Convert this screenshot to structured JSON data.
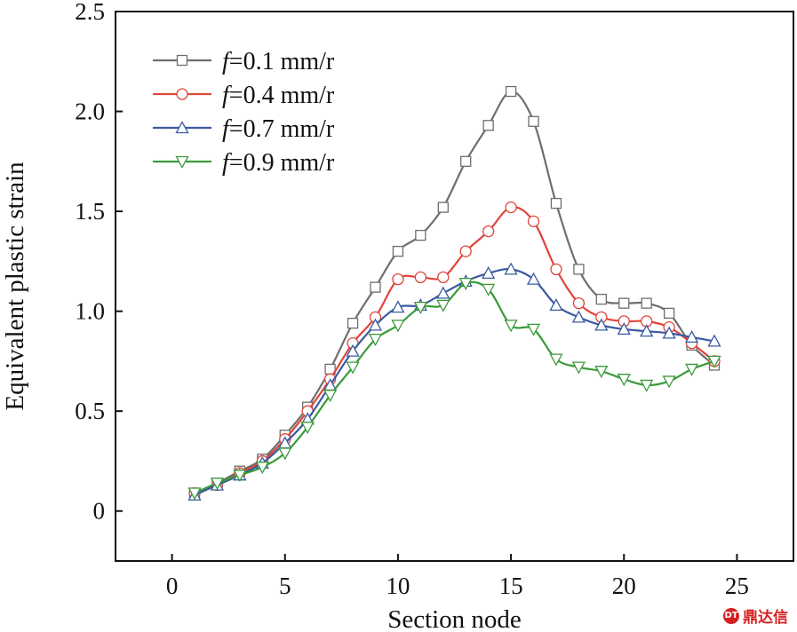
{
  "chart_data": {
    "type": "line",
    "xlabel": "Section node",
    "ylabel": "Equivalent plastic strain",
    "xlim": [
      -2.5,
      27.5
    ],
    "ylim": [
      -0.25,
      2.5
    ],
    "xticks": [
      0,
      5,
      10,
      15,
      20,
      25
    ],
    "xtick_labels": [
      "0",
      "5",
      "10",
      "15",
      "20",
      "25"
    ],
    "yticks": [
      0,
      0.5,
      1.0,
      1.5,
      2.0,
      2.5
    ],
    "ytick_labels": [
      "0",
      "0.5",
      "1.0",
      "1.5",
      "2.0",
      "2.5"
    ],
    "grid": false,
    "legend_position": "top-left",
    "x": [
      1,
      2,
      3,
      4,
      5,
      6,
      7,
      8,
      9,
      10,
      11,
      12,
      13,
      14,
      15,
      16,
      17,
      18,
      19,
      20,
      21,
      22,
      23,
      24
    ],
    "series": [
      {
        "legend_italic": "f",
        "legend_rest": "=0.1 mm/r",
        "color": "#6e6e6e",
        "marker": "square",
        "values": [
          0.09,
          0.14,
          0.2,
          0.26,
          0.38,
          0.52,
          0.71,
          0.94,
          1.12,
          1.3,
          1.38,
          1.52,
          1.75,
          1.93,
          2.1,
          1.95,
          1.54,
          1.21,
          1.06,
          1.04,
          1.04,
          0.99,
          0.83,
          0.73
        ]
      },
      {
        "legend_italic": "f",
        "legend_rest": "=0.4 mm/r",
        "color": "#e0453a",
        "marker": "circle",
        "values": [
          0.09,
          0.13,
          0.19,
          0.25,
          0.36,
          0.5,
          0.66,
          0.84,
          0.97,
          1.16,
          1.17,
          1.17,
          1.3,
          1.4,
          1.52,
          1.45,
          1.21,
          1.04,
          0.97,
          0.95,
          0.95,
          0.92,
          0.84,
          0.75
        ]
      },
      {
        "legend_italic": "f",
        "legend_rest": "=0.7 mm/r",
        "color": "#3a5a9f",
        "marker": "triangle-up",
        "values": [
          0.08,
          0.13,
          0.18,
          0.24,
          0.34,
          0.46,
          0.63,
          0.8,
          0.93,
          1.02,
          1.03,
          1.09,
          1.15,
          1.19,
          1.21,
          1.16,
          1.03,
          0.97,
          0.93,
          0.91,
          0.9,
          0.89,
          0.87,
          0.85
        ]
      },
      {
        "legend_italic": "f",
        "legend_rest": "=0.9 mm/r",
        "color": "#3a9a3a",
        "marker": "triangle-down",
        "values": [
          0.09,
          0.14,
          0.18,
          0.22,
          0.29,
          0.42,
          0.58,
          0.72,
          0.86,
          0.93,
          1.02,
          1.03,
          1.14,
          1.11,
          0.93,
          0.91,
          0.76,
          0.72,
          0.7,
          0.66,
          0.63,
          0.65,
          0.71,
          0.75
        ]
      }
    ]
  },
  "watermark": {
    "icon_text": "DT",
    "text": "鼎达信"
  }
}
